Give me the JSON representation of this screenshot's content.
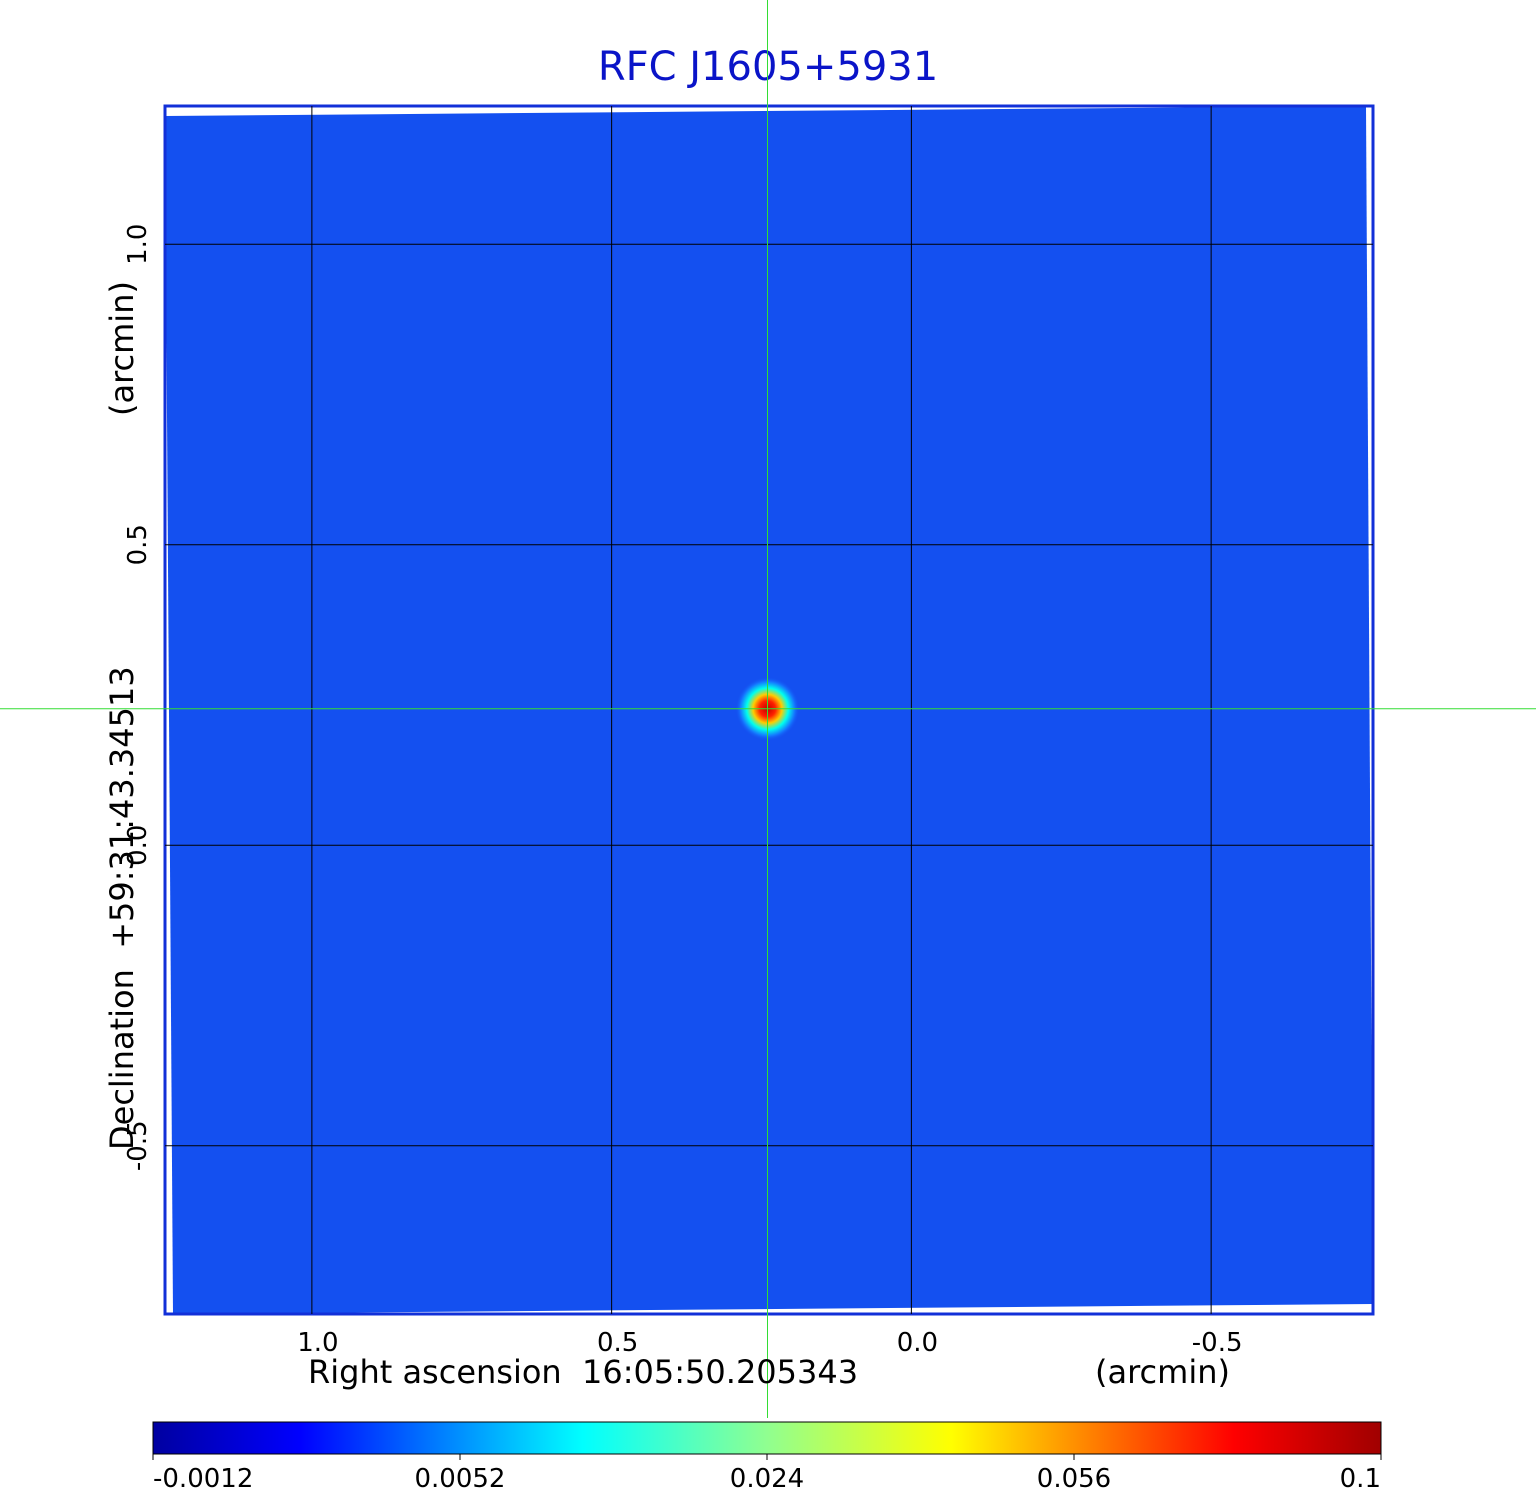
{
  "chart_data": {
    "type": "heatmap",
    "title": "RFC J1605+5931",
    "xlabel": "Right ascension  16:05:50.205343",
    "xlabel_unit": "(arcmin)",
    "ylabel": "Declination  +59:31:43.34513",
    "ylabel_unit": "(arcmin)",
    "x_ticks": [
      "1.0",
      "0.5",
      "0.0",
      "-0.5"
    ],
    "x_tick_values": [
      1.0,
      0.5,
      0.0,
      -0.5
    ],
    "y_ticks": [
      "1.0",
      "0.5",
      "0.0",
      "-0.5"
    ],
    "y_tick_values": [
      1.0,
      0.5,
      0.0,
      -0.5
    ],
    "xlim": [
      1.245,
      -0.77
    ],
    "ylim": [
      -0.78,
      1.23
    ],
    "grid": true,
    "crosshair": {
      "x": 0.24,
      "y": 0.227,
      "color": "#33dd33"
    },
    "source_peak": {
      "x": 0.24,
      "y": 0.227,
      "value": 0.1
    },
    "colormap": "jet",
    "colorbar": {
      "ticks": [
        "-0.0012",
        "0.0052",
        "0.024",
        "0.056",
        "0.1"
      ],
      "min": -0.0012,
      "max": 0.1,
      "placement": "bottom"
    },
    "background_color": "#1450f0",
    "frame_color": "#1230d8"
  }
}
